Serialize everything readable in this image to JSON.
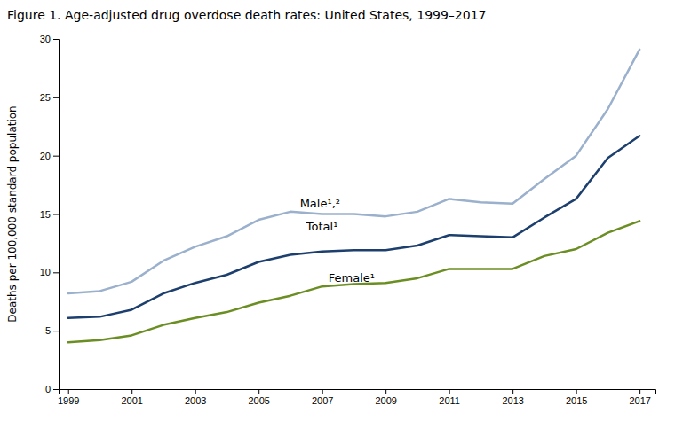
{
  "chart_data": {
    "type": "line",
    "title": "Figure 1. Age-adjusted drug overdose death rates: United States, 1999–2017",
    "y_label": "Deaths per 100,000 standard population",
    "x": [
      1999,
      2000,
      2001,
      2002,
      2003,
      2004,
      2005,
      2006,
      2007,
      2008,
      2009,
      2010,
      2011,
      2012,
      2013,
      2014,
      2015,
      2016,
      2017
    ],
    "series": [
      {
        "color": "#9ab0cc",
        "values": [
          8.2,
          8.4,
          9.2,
          11.0,
          12.2,
          13.1,
          14.5,
          15.2,
          15.0,
          15.0,
          14.8,
          15.2,
          16.3,
          16.0,
          15.9,
          18.0,
          20.0,
          24.0,
          29.1
        ]
      },
      {
        "color": "#1c3f6e",
        "values": [
          6.1,
          6.2,
          6.8,
          8.2,
          9.1,
          9.8,
          10.9,
          11.5,
          11.8,
          11.9,
          11.9,
          12.3,
          13.2,
          13.1,
          13.0,
          14.7,
          16.3,
          19.8,
          21.7
        ]
      },
      {
        "color": "#6b8e23",
        "values": [
          4.0,
          4.2,
          4.6,
          5.5,
          6.1,
          6.6,
          7.4,
          8.0,
          8.8,
          9.0,
          9.1,
          9.5,
          10.3,
          10.3,
          10.3,
          11.4,
          12.0,
          13.4,
          14.4
        ]
      }
    ],
    "annotations": [
      {
        "text": "Male¹,²",
        "x": 2006.3,
        "y": 15.6
      },
      {
        "text": "Total¹",
        "x": 2006.5,
        "y": 13.6
      },
      {
        "text": "Female¹",
        "x": 2007.2,
        "y": 9.2
      }
    ],
    "xlim": [
      1998.7,
      2017.5
    ],
    "xticks": [
      1999,
      2001,
      2003,
      2005,
      2007,
      2009,
      2011,
      2013,
      2015,
      2017
    ],
    "ylim": [
      0,
      30
    ],
    "yticks": [
      0,
      5,
      10,
      15,
      20,
      25,
      30
    ],
    "grid": false
  }
}
